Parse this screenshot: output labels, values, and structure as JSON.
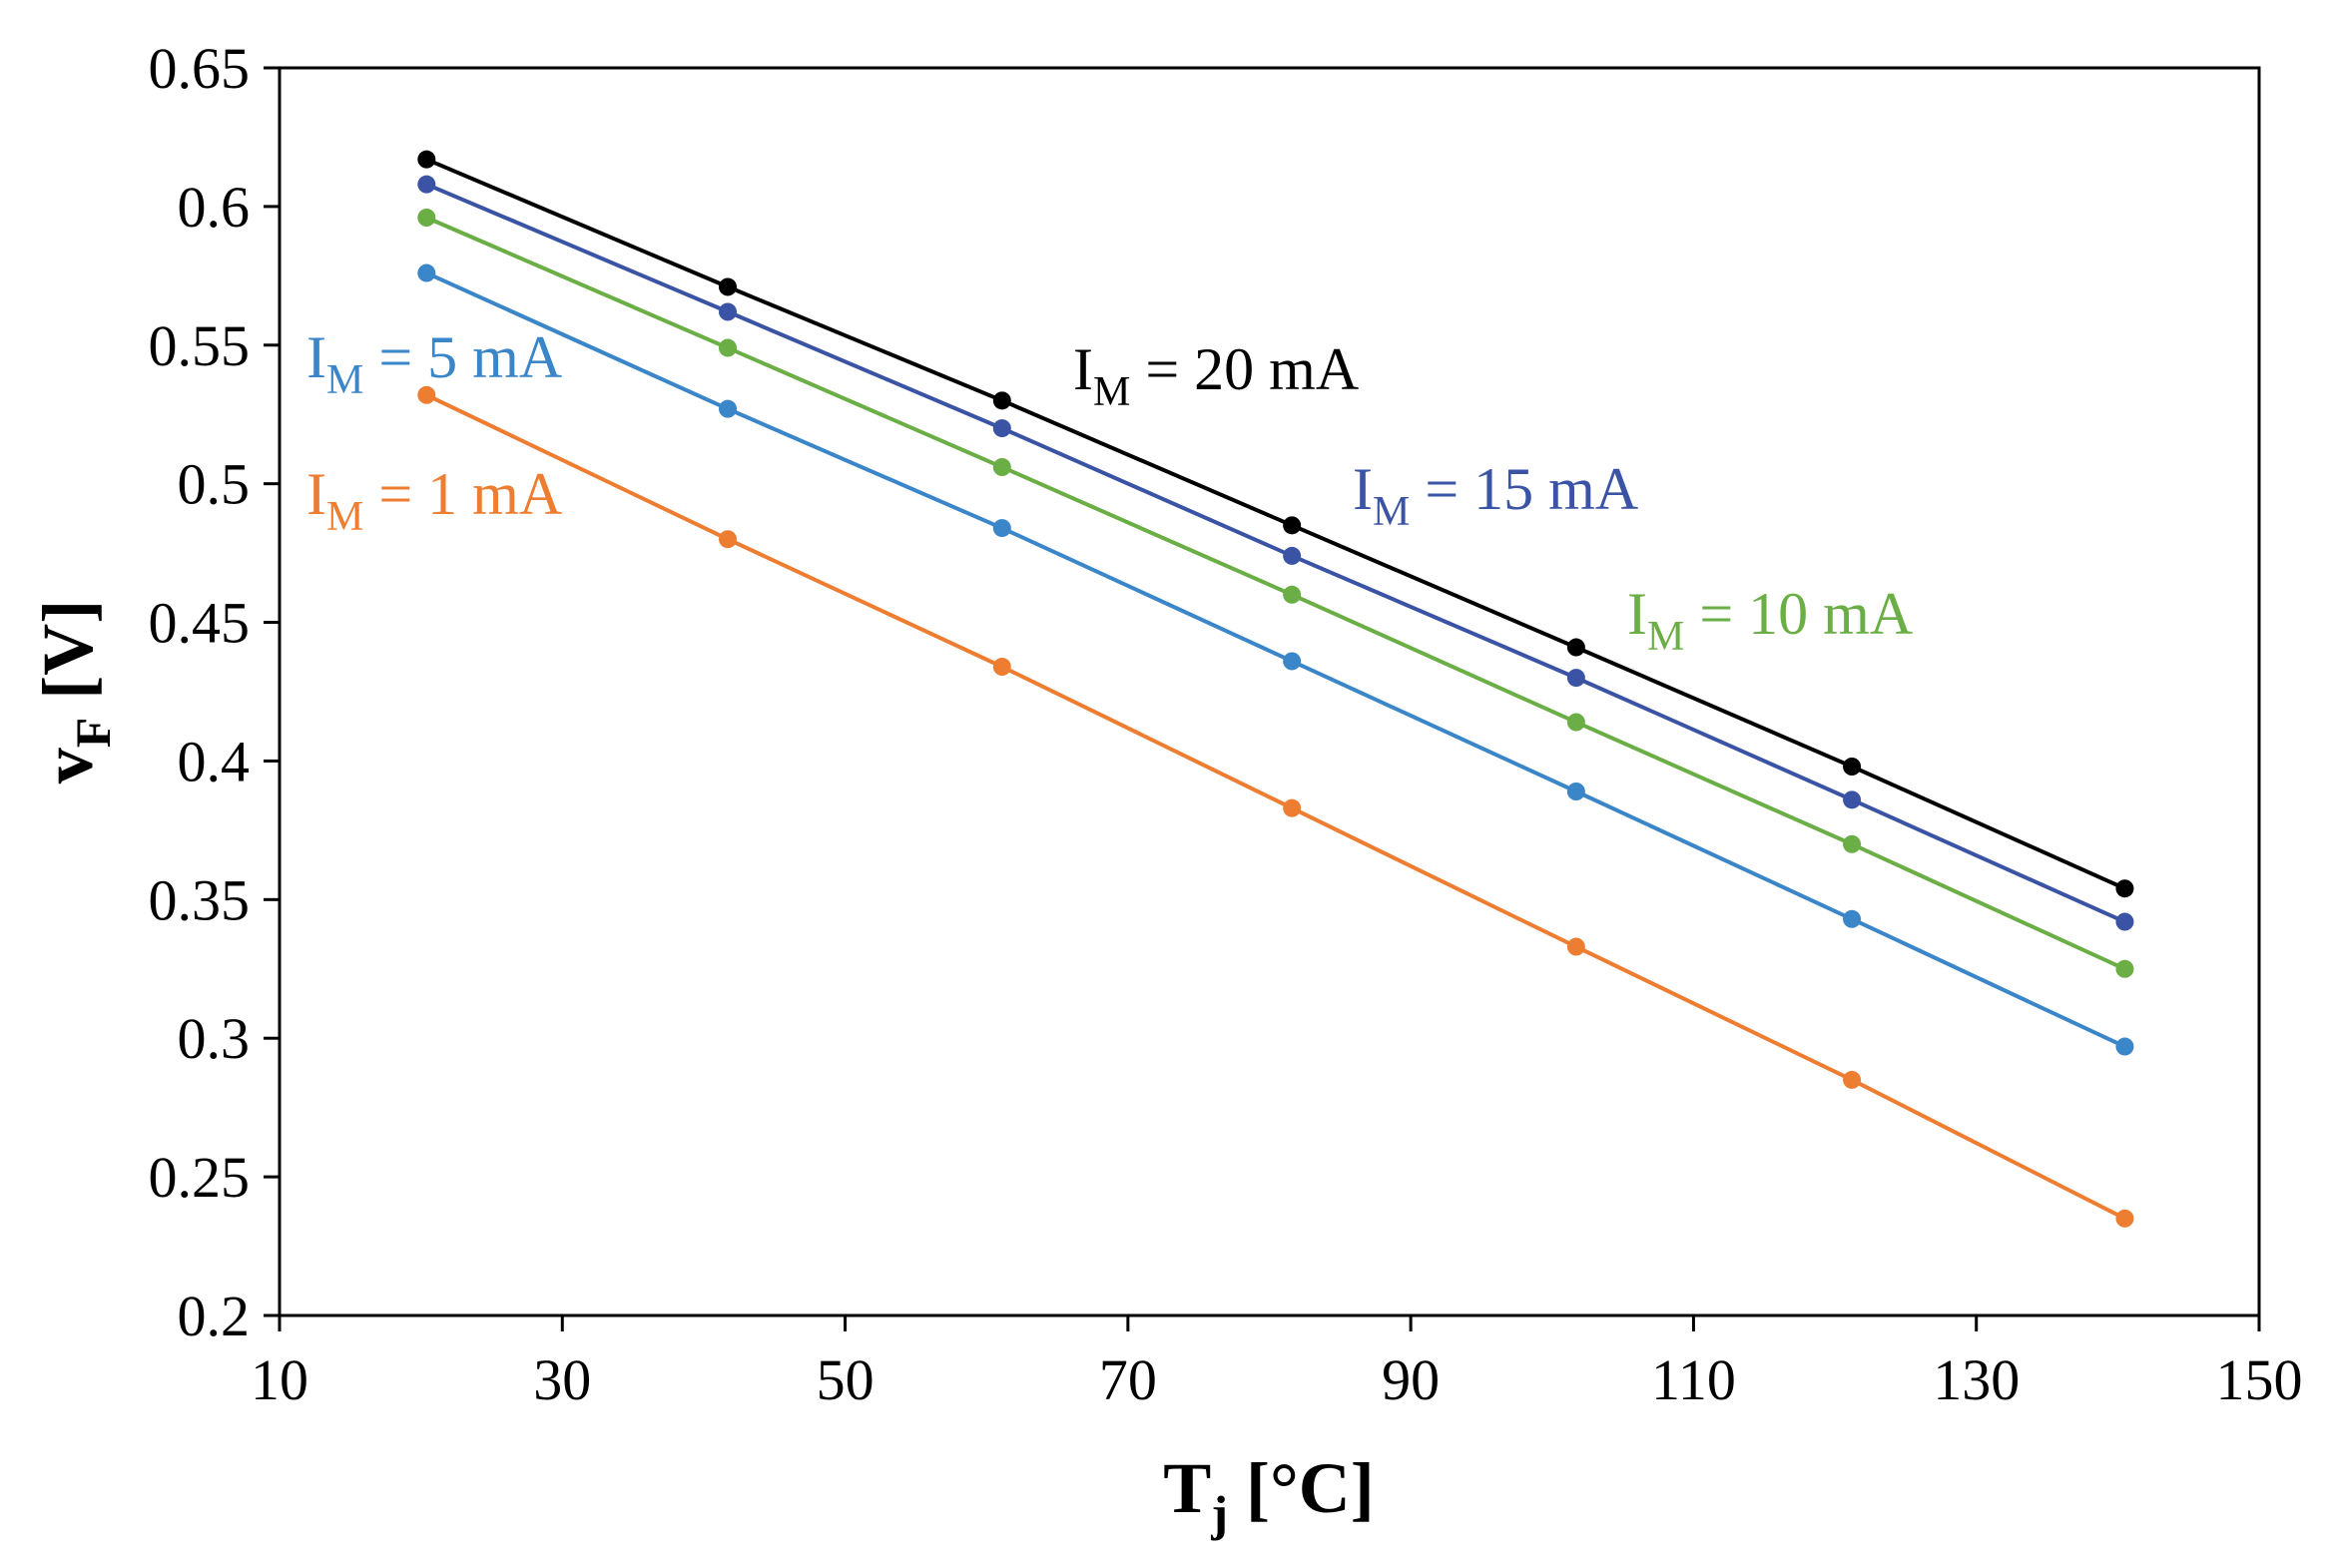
{
  "chart_data": {
    "type": "line",
    "title": "",
    "xlabel": {
      "main": "T",
      "sub": "j",
      "unit": " [°C]"
    },
    "ylabel": {
      "main": "v",
      "sub": "F",
      "unit": " [V]"
    },
    "xlim": [
      10,
      150
    ],
    "ylim": [
      0.2,
      0.65
    ],
    "xticks": [
      "10",
      "30",
      "50",
      "70",
      "90",
      "110",
      "130",
      "150"
    ],
    "yticks": [
      "0.2",
      "0.25",
      "0.3",
      "0.35",
      "0.4",
      "0.45",
      "0.5",
      "0.55",
      "0.6",
      "0.65"
    ],
    "grid": false,
    "x": [
      20.4,
      41.7,
      61.1,
      81.6,
      101.7,
      121.2,
      140.5
    ],
    "series": [
      {
        "name": "I_M = 20 mA",
        "label": {
          "pre": "I",
          "sub": "M",
          "post": " = 20 mA"
        },
        "color": "#000000",
        "values": [
          0.617,
          0.571,
          0.53,
          0.485,
          0.441,
          0.398,
          0.354
        ]
      },
      {
        "name": "I_M = 15 mA",
        "label": {
          "pre": "I",
          "sub": "M",
          "post": " = 15 mA"
        },
        "color": "#3A53A4",
        "values": [
          0.608,
          0.562,
          0.52,
          0.474,
          0.43,
          0.386,
          0.342
        ]
      },
      {
        "name": "I_M = 10 mA",
        "label": {
          "pre": "I",
          "sub": "M",
          "post": " = 10 mA"
        },
        "color": "#6AAE45",
        "values": [
          0.596,
          0.549,
          0.506,
          0.46,
          0.414,
          0.37,
          0.325
        ]
      },
      {
        "name": "I_M = 5 mA",
        "label": {
          "pre": "I",
          "sub": "M",
          "post": " = 5 mA"
        },
        "color": "#3A86C8",
        "values": [
          0.576,
          0.527,
          0.484,
          0.436,
          0.389,
          0.343,
          0.297
        ]
      },
      {
        "name": "I_M = 1 mA",
        "label": {
          "pre": "I",
          "sub": "M",
          "post": " = 1 mA"
        },
        "color": "#ED7D31",
        "values": [
          0.532,
          0.48,
          0.434,
          0.383,
          0.333,
          0.285,
          0.235
        ]
      }
    ]
  }
}
